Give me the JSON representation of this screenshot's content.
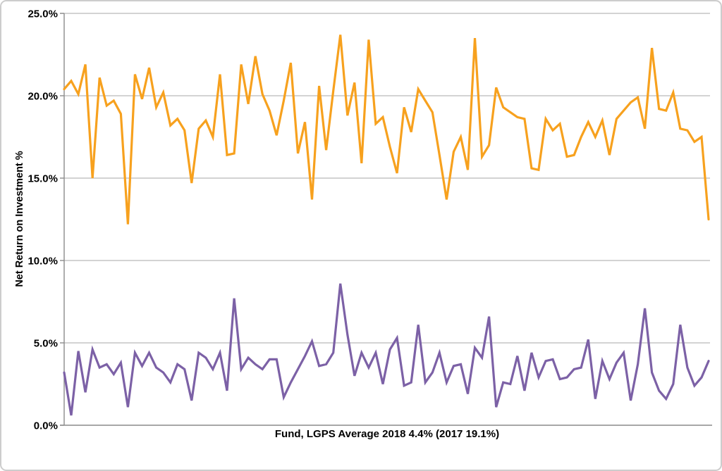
{
  "figure": {
    "background_color": "#ffffff",
    "outer_border_color": "#cdcdcd",
    "gridline_color": "#a7a7a7",
    "axis_color": "#8c8c8c"
  },
  "chart_data": {
    "type": "line",
    "title": "",
    "xlabel": "Fund, LGPS Average 2018 4.4% (2017 19.1%)",
    "ylabel": "Net Return on Investment %",
    "ylim": [
      0,
      25
    ],
    "yticks": [
      0,
      5,
      10,
      15,
      20,
      25
    ],
    "ytick_labels": [
      "0.0%",
      "5.0%",
      "10.0%",
      "15.0%",
      "20.0%",
      "25.0%"
    ],
    "xtick_labels": [],
    "grid": true,
    "legend": "none",
    "series": [
      {
        "name": "orange-line",
        "color": "#F7A11E",
        "stroke_width": 3.2,
        "values": [
          20.4,
          20.9,
          20.1,
          21.9,
          15.0,
          21.1,
          19.4,
          19.7,
          18.9,
          12.2,
          21.3,
          19.8,
          21.7,
          19.3,
          20.2,
          18.2,
          18.6,
          17.9,
          14.7,
          18.0,
          18.5,
          17.5,
          21.3,
          16.4,
          16.5,
          21.9,
          19.5,
          22.4,
          20.1,
          19.1,
          17.6,
          19.7,
          22.0,
          16.5,
          18.4,
          13.7,
          20.6,
          16.7,
          20.3,
          23.7,
          18.8,
          20.8,
          15.9,
          23.4,
          18.3,
          18.7,
          16.9,
          15.3,
          19.3,
          17.8,
          20.4,
          19.7,
          19.0,
          16.4,
          13.7,
          16.6,
          17.5,
          15.5,
          23.5,
          16.3,
          17.0,
          20.5,
          19.3,
          19.0,
          18.7,
          18.6,
          15.6,
          15.5,
          18.6,
          17.9,
          18.3,
          16.3,
          16.4,
          17.5,
          18.4,
          17.5,
          18.5,
          16.4,
          18.6,
          19.1,
          19.6,
          19.9,
          18.0,
          22.9,
          19.2,
          19.1,
          20.2,
          18.0,
          17.9,
          17.2,
          17.5,
          12.5
        ]
      },
      {
        "name": "purple-line",
        "color": "#7C61A6",
        "stroke_width": 3.2,
        "values": [
          3.2,
          0.6,
          4.5,
          2.0,
          4.6,
          3.5,
          3.7,
          3.1,
          3.8,
          1.1,
          4.4,
          3.6,
          4.4,
          3.5,
          3.2,
          2.6,
          3.7,
          3.4,
          1.5,
          4.4,
          4.1,
          3.4,
          4.4,
          2.1,
          7.7,
          3.4,
          4.1,
          3.7,
          3.4,
          4.0,
          4.0,
          1.7,
          2.6,
          3.4,
          4.2,
          5.1,
          3.6,
          3.7,
          4.4,
          8.6,
          5.5,
          3.0,
          4.4,
          3.5,
          4.4,
          2.5,
          4.6,
          5.3,
          2.4,
          2.6,
          6.1,
          2.6,
          3.2,
          4.4,
          2.6,
          3.6,
          3.7,
          1.9,
          4.7,
          4.1,
          6.6,
          1.1,
          2.6,
          2.5,
          4.2,
          2.1,
          4.4,
          2.9,
          3.9,
          4.0,
          2.8,
          2.9,
          3.4,
          3.5,
          5.2,
          1.6,
          3.9,
          2.8,
          3.8,
          4.4,
          1.5,
          3.7,
          7.1,
          3.2,
          2.1,
          1.6,
          2.5,
          6.1,
          3.5,
          2.4,
          2.9,
          3.9
        ]
      }
    ]
  }
}
